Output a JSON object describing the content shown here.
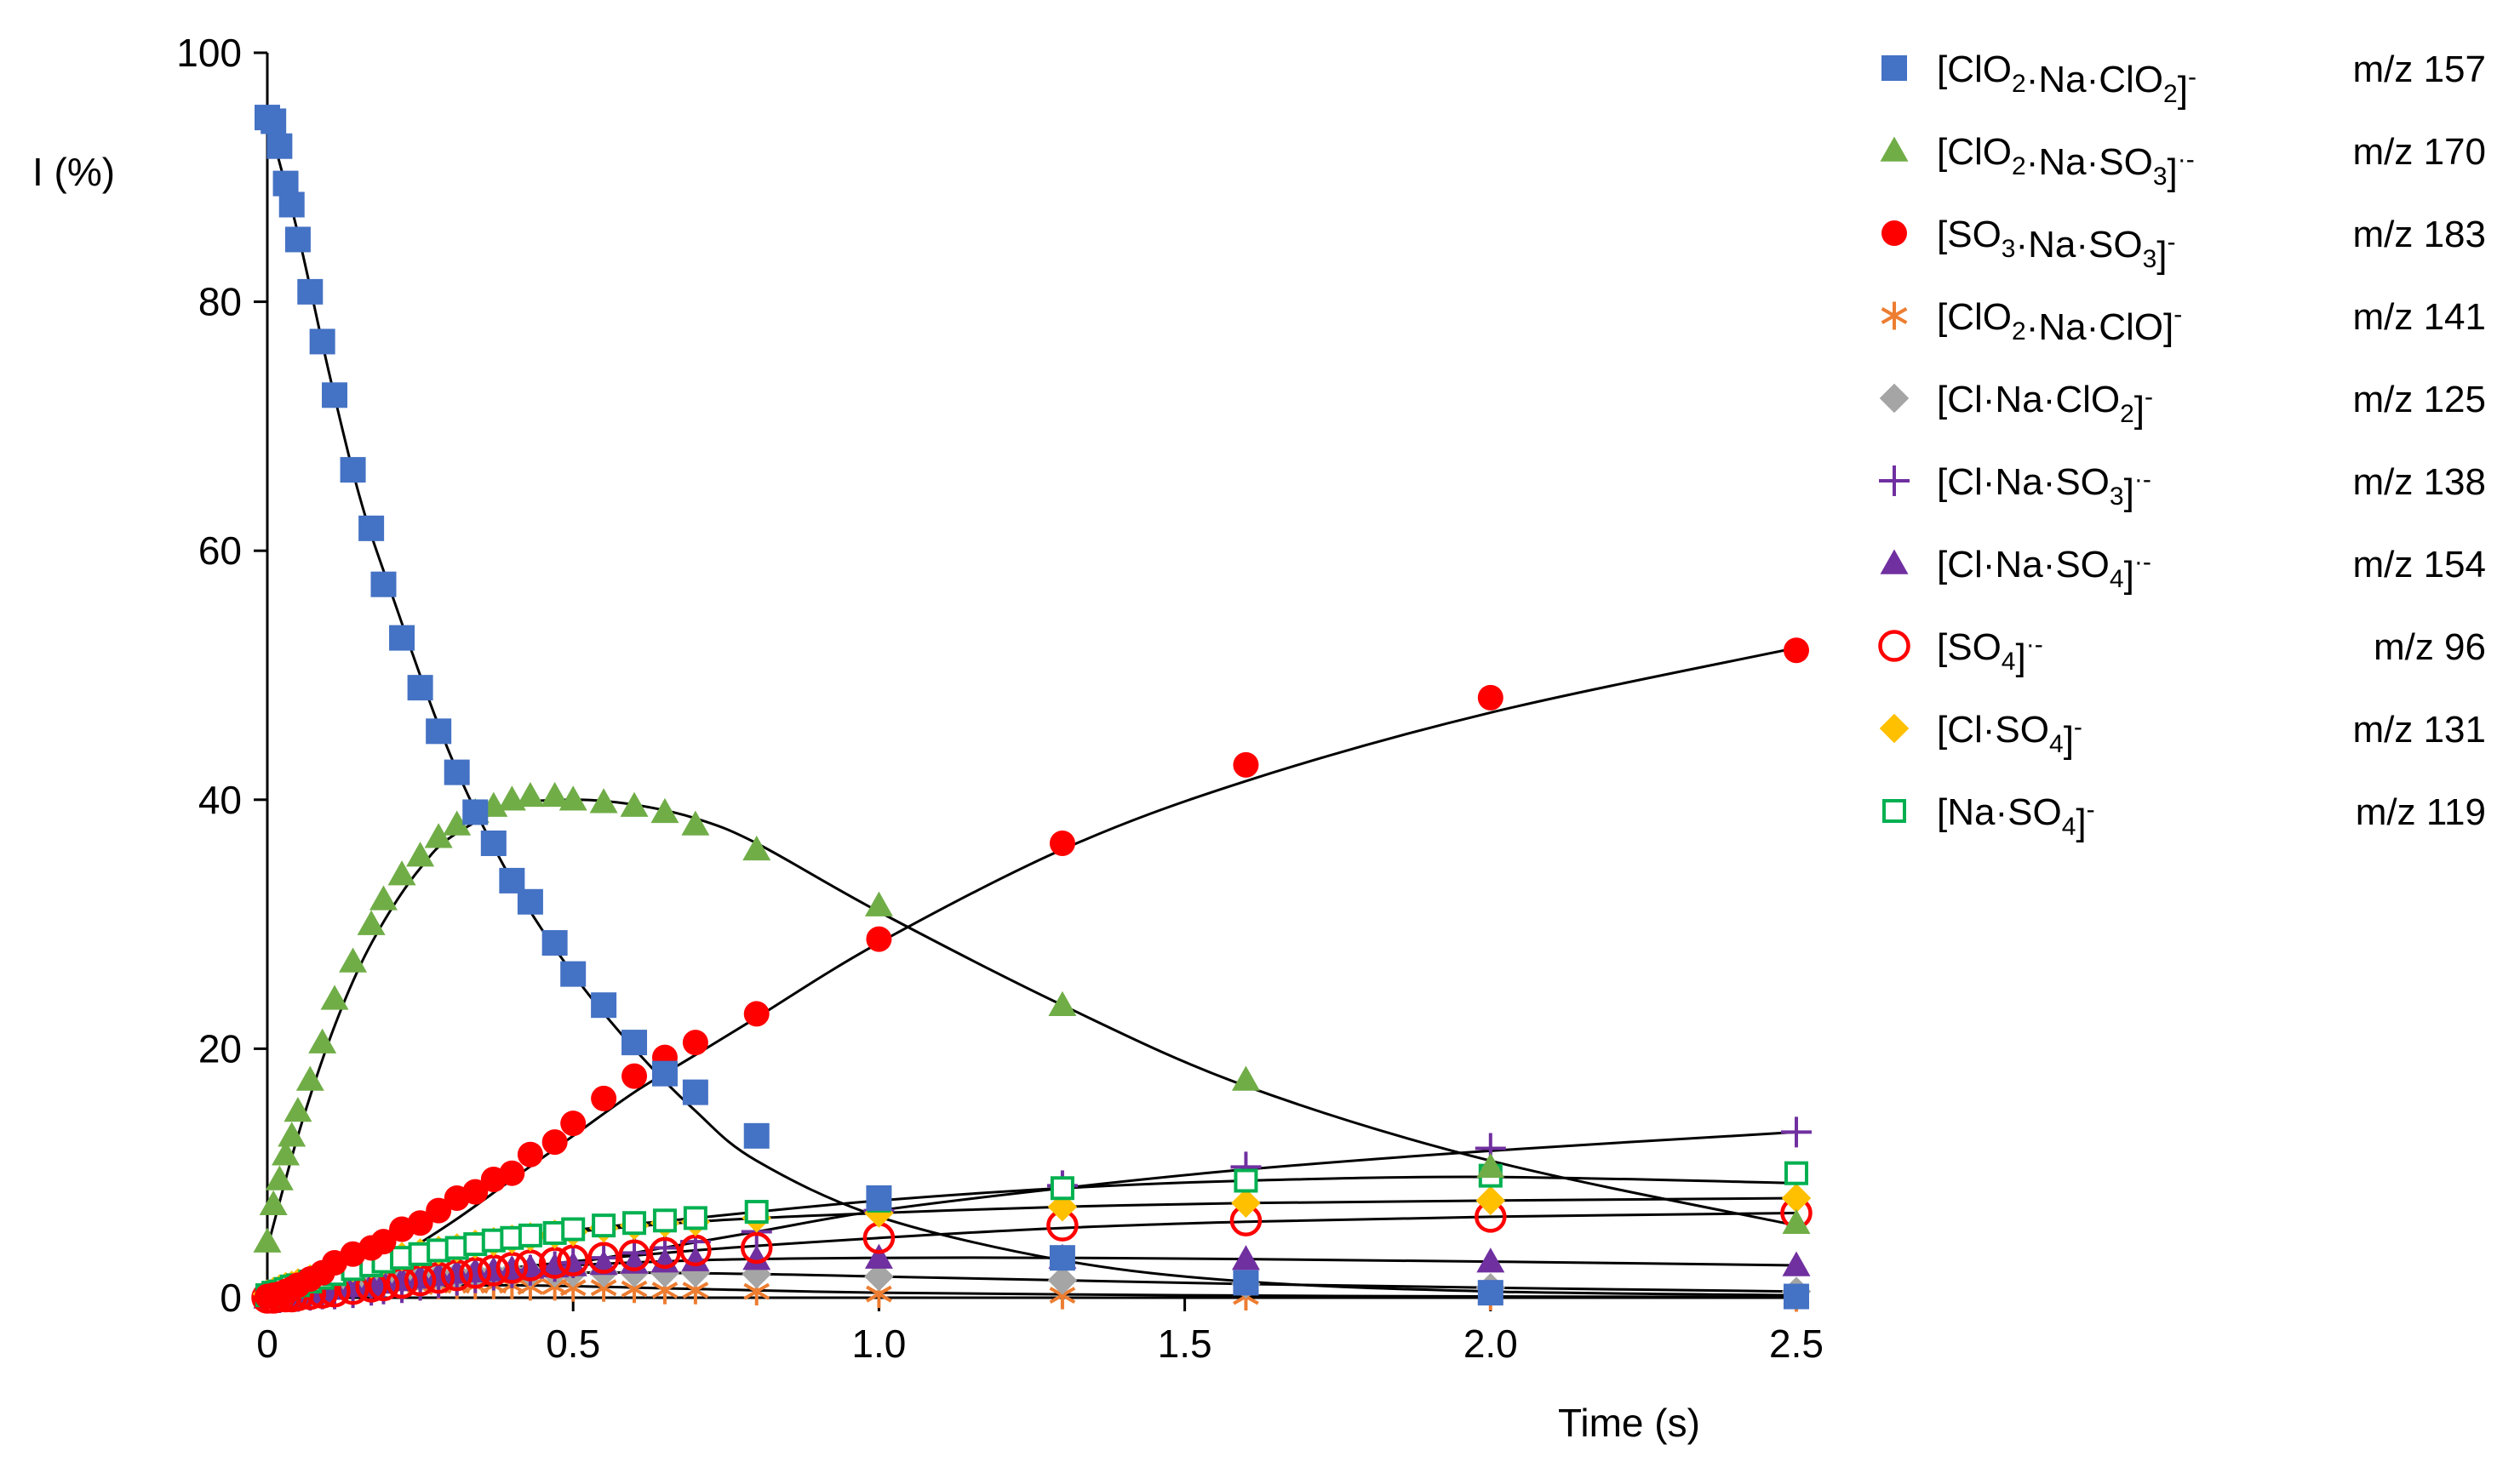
{
  "chart_data": {
    "type": "scatter",
    "title": "",
    "xlabel": "Time (s)",
    "ylabel": "I (%)",
    "xlim": [
      0,
      2.5
    ],
    "ylim": [
      0,
      100
    ],
    "xticks": [
      0,
      0.5,
      1.0,
      1.5,
      2.0,
      2.5
    ],
    "xtick_labels": [
      "0",
      "0.5",
      "1.0",
      "1.5",
      "2.0",
      "2.5"
    ],
    "yticks": [
      0,
      20,
      40,
      60,
      80,
      100
    ],
    "ytick_labels": [
      "0",
      "20",
      "40",
      "60",
      "80",
      "100"
    ],
    "grid": false,
    "legend_position": "right",
    "x": [
      0,
      0.01,
      0.02,
      0.03,
      0.04,
      0.05,
      0.07,
      0.09,
      0.11,
      0.14,
      0.17,
      0.19,
      0.22,
      0.25,
      0.28,
      0.31,
      0.34,
      0.37,
      0.4,
      0.43,
      0.47,
      0.5,
      0.55,
      0.6,
      0.65,
      0.7,
      0.8,
      1.0,
      1.3,
      1.6,
      2.0,
      2.5
    ],
    "series": [
      {
        "key": "s157",
        "name": "[ClO2·Na·ClO2]-",
        "mz": "m/z 157",
        "marker": "square",
        "color": "#4472C4",
        "legend_parts": [
          [
            "[ClO",
            ""
          ],
          [
            "2",
            "sub"
          ],
          [
            "·Na·ClO",
            ""
          ],
          [
            "2",
            "sub"
          ],
          [
            "]",
            ""
          ],
          [
            "-",
            "sup"
          ]
        ],
        "values": [
          94.8,
          94.5,
          92.5,
          89.5,
          87.8,
          85.0,
          80.8,
          76.8,
          72.5,
          66.5,
          61.8,
          57.3,
          53.0,
          49.0,
          45.5,
          42.2,
          39.0,
          36.5,
          33.5,
          31.8,
          28.5,
          26.0,
          23.5,
          20.5,
          18.0,
          16.5,
          13.0,
          8.0,
          3.2,
          1.2,
          0.4,
          0.1
        ],
        "fit": [
          [
            0,
            94.8
          ],
          [
            0.05,
            85.5
          ],
          [
            0.1,
            74.5
          ],
          [
            0.15,
            64.5
          ],
          [
            0.2,
            57.0
          ],
          [
            0.3,
            43.5
          ],
          [
            0.4,
            33.5
          ],
          [
            0.5,
            26.0
          ],
          [
            0.6,
            20.0
          ],
          [
            0.7,
            15.0
          ],
          [
            0.8,
            11.0
          ],
          [
            1.0,
            6.5
          ],
          [
            1.3,
            3.0
          ],
          [
            1.6,
            1.3
          ],
          [
            2.0,
            0.5
          ],
          [
            2.5,
            0.2
          ]
        ]
      },
      {
        "key": "s170",
        "name": "[ClO2·Na·SO3]·-",
        "mz": "m/z 170",
        "marker": "triangle",
        "color": "#70AD47",
        "legend_parts": [
          [
            "[ClO",
            ""
          ],
          [
            "2",
            "sub"
          ],
          [
            "·Na·SO",
            ""
          ],
          [
            "3",
            "sub"
          ],
          [
            "]",
            ""
          ],
          [
            "·-",
            "sup"
          ]
        ],
        "values": [
          4.5,
          7.5,
          9.5,
          11.5,
          13.0,
          15.0,
          17.5,
          20.5,
          24.0,
          27.0,
          30.0,
          32.0,
          34.0,
          35.5,
          37.0,
          38.0,
          39.0,
          39.5,
          40.0,
          40.3,
          40.3,
          40.0,
          39.8,
          39.5,
          39.0,
          38.0,
          36.0,
          31.5,
          23.5,
          17.5,
          10.5,
          6.0
        ],
        "fit": [
          [
            0,
            4.0
          ],
          [
            0.05,
            13.0
          ],
          [
            0.1,
            20.5
          ],
          [
            0.15,
            26.5
          ],
          [
            0.2,
            31.0
          ],
          [
            0.25,
            34.5
          ],
          [
            0.3,
            37.0
          ],
          [
            0.4,
            39.5
          ],
          [
            0.5,
            40.0
          ],
          [
            0.6,
            39.6
          ],
          [
            0.7,
            38.5
          ],
          [
            0.8,
            36.5
          ],
          [
            1.0,
            31.0
          ],
          [
            1.3,
            23.5
          ],
          [
            1.6,
            17.0
          ],
          [
            2.0,
            11.0
          ],
          [
            2.5,
            5.8
          ]
        ]
      },
      {
        "key": "s183",
        "name": "[SO3·Na·SO3]-",
        "mz": "m/z 183",
        "marker": "circle",
        "color": "#FF0000",
        "legend_parts": [
          [
            "[SO",
            ""
          ],
          [
            "3",
            "sub"
          ],
          [
            "·Na·SO",
            ""
          ],
          [
            "3",
            "sub"
          ],
          [
            "]",
            ""
          ],
          [
            "-",
            "sup"
          ]
        ],
        "values": [
          0.1,
          0.2,
          0.3,
          0.5,
          0.7,
          1.0,
          1.5,
          2.0,
          2.8,
          3.5,
          4.0,
          4.5,
          5.5,
          6.0,
          7.0,
          8.0,
          8.5,
          9.5,
          10.0,
          11.5,
          12.5,
          14.0,
          16.0,
          17.8,
          19.3,
          20.5,
          22.8,
          28.8,
          36.5,
          42.8,
          48.2,
          52.0
        ],
        "fit": [
          [
            0,
            0
          ],
          [
            0.1,
            1.0
          ],
          [
            0.2,
            3.0
          ],
          [
            0.3,
            6.0
          ],
          [
            0.4,
            9.5
          ],
          [
            0.5,
            13.0
          ],
          [
            0.6,
            16.5
          ],
          [
            0.7,
            19.5
          ],
          [
            0.8,
            22.5
          ],
          [
            1.0,
            28.5
          ],
          [
            1.3,
            36.0
          ],
          [
            1.6,
            41.5
          ],
          [
            2.0,
            47.0
          ],
          [
            2.5,
            52.2
          ]
        ]
      },
      {
        "key": "s141",
        "name": "[ClO2·Na·ClO]-",
        "mz": "m/z 141",
        "marker": "asterisk",
        "color": "#ED7D31",
        "legend_parts": [
          [
            "[ClO",
            ""
          ],
          [
            "2",
            "sub"
          ],
          [
            "·Na·ClO]",
            ""
          ],
          [
            "-",
            "sup"
          ]
        ],
        "values": [
          0.1,
          0.1,
          0.2,
          0.2,
          0.3,
          0.3,
          0.4,
          0.5,
          0.6,
          0.7,
          0.8,
          0.8,
          0.9,
          0.9,
          1.0,
          1.0,
          1.0,
          1.0,
          1.0,
          0.9,
          0.9,
          0.8,
          0.8,
          0.7,
          0.6,
          0.6,
          0.5,
          0.3,
          0.2,
          0.1,
          0.1,
          0.0
        ],
        "fit": [
          [
            0,
            0
          ],
          [
            0.2,
            0.8
          ],
          [
            0.4,
            1.0
          ],
          [
            0.7,
            0.7
          ],
          [
            1.0,
            0.4
          ],
          [
            1.5,
            0.2
          ],
          [
            2.0,
            0.1
          ],
          [
            2.5,
            0.05
          ]
        ]
      },
      {
        "key": "s125",
        "name": "[Cl·Na·ClO2]-",
        "mz": "m/z 125",
        "marker": "diamond",
        "color": "#A5A5A5",
        "legend_parts": [
          [
            "[Cl·Na·ClO",
            ""
          ],
          [
            "2",
            "sub"
          ],
          [
            "]",
            ""
          ],
          [
            "-",
            "sup"
          ]
        ],
        "values": [
          0.2,
          0.2,
          0.3,
          0.4,
          0.5,
          0.6,
          0.7,
          0.8,
          1.0,
          1.1,
          1.3,
          1.4,
          1.5,
          1.6,
          1.7,
          1.8,
          1.9,
          1.9,
          2.0,
          2.0,
          2.0,
          2.0,
          2.0,
          2.0,
          2.0,
          2.0,
          1.9,
          1.7,
          1.4,
          1.1,
          0.8,
          0.5
        ],
        "fit": [
          [
            0,
            0.2
          ],
          [
            0.2,
            1.4
          ],
          [
            0.5,
            2.0
          ],
          [
            0.8,
            1.9
          ],
          [
            1.0,
            1.7
          ],
          [
            1.3,
            1.4
          ],
          [
            1.6,
            1.1
          ],
          [
            2.0,
            0.8
          ],
          [
            2.5,
            0.5
          ]
        ]
      },
      {
        "key": "s138",
        "name": "[Cl·Na·SO3]·-",
        "mz": "m/z 138",
        "marker": "plus",
        "color": "#7030A0",
        "legend_parts": [
          [
            "[Cl·Na·SO",
            ""
          ],
          [
            "3",
            "sub"
          ],
          [
            "]",
            ""
          ],
          [
            "·-",
            "sup"
          ]
        ],
        "values": [
          0.0,
          0.0,
          0.0,
          0.1,
          0.1,
          0.1,
          0.2,
          0.3,
          0.3,
          0.4,
          0.6,
          0.7,
          0.8,
          1.0,
          1.2,
          1.4,
          1.6,
          1.8,
          2.0,
          2.2,
          2.5,
          2.8,
          3.2,
          3.6,
          4.0,
          4.5,
          5.3,
          7.0,
          9.0,
          10.5,
          12.0,
          13.3
        ],
        "fit": [
          [
            0,
            0
          ],
          [
            0.2,
            0.6
          ],
          [
            0.4,
            2.0
          ],
          [
            0.6,
            3.6
          ],
          [
            0.8,
            5.3
          ],
          [
            1.0,
            7.0
          ],
          [
            1.3,
            8.8
          ],
          [
            1.6,
            10.3
          ],
          [
            2.0,
            11.8
          ],
          [
            2.5,
            13.3
          ]
        ]
      },
      {
        "key": "s154",
        "name": "[Cl·Na·SO4]·-",
        "mz": "m/z 154",
        "marker": "triangle",
        "color": "#7030A0",
        "legend_parts": [
          [
            "[Cl·Na·SO",
            ""
          ],
          [
            "4",
            "sub"
          ],
          [
            "]",
            ""
          ],
          [
            "·-",
            "sup"
          ]
        ],
        "values": [
          0.0,
          0.1,
          0.1,
          0.2,
          0.2,
          0.3,
          0.4,
          0.5,
          0.7,
          0.9,
          1.0,
          1.2,
          1.4,
          1.6,
          1.8,
          2.0,
          2.1,
          2.2,
          2.3,
          2.4,
          2.5,
          2.6,
          2.7,
          2.8,
          2.9,
          3.0,
          3.1,
          3.2,
          3.2,
          3.1,
          2.9,
          2.6
        ],
        "fit": [
          [
            0,
            0
          ],
          [
            0.2,
            1.2
          ],
          [
            0.4,
            2.3
          ],
          [
            0.7,
            3.0
          ],
          [
            1.0,
            3.2
          ],
          [
            1.3,
            3.2
          ],
          [
            1.6,
            3.1
          ],
          [
            2.0,
            2.9
          ],
          [
            2.5,
            2.6
          ]
        ]
      },
      {
        "key": "s96",
        "name": "[SO4]·-",
        "mz": "m/z 96",
        "marker": "open-circle",
        "color": "#FF0000",
        "legend_parts": [
          [
            "[SO",
            ""
          ],
          [
            "4",
            "sub"
          ],
          [
            "]",
            ""
          ],
          [
            "·-",
            "sup"
          ]
        ],
        "values": [
          0.0,
          0.0,
          0.1,
          0.1,
          0.1,
          0.2,
          0.3,
          0.4,
          0.5,
          0.7,
          0.9,
          1.0,
          1.2,
          1.4,
          1.6,
          1.8,
          2.0,
          2.2,
          2.4,
          2.6,
          2.8,
          3.0,
          3.2,
          3.4,
          3.6,
          3.8,
          4.0,
          4.8,
          5.8,
          6.2,
          6.5,
          6.8
        ],
        "fit": [
          [
            0,
            0
          ],
          [
            0.2,
            1.0
          ],
          [
            0.4,
            2.4
          ],
          [
            0.7,
            3.8
          ],
          [
            1.0,
            4.8
          ],
          [
            1.3,
            5.6
          ],
          [
            1.6,
            6.1
          ],
          [
            2.0,
            6.5
          ],
          [
            2.5,
            6.8
          ]
        ]
      },
      {
        "key": "s131",
        "name": "[Cl·SO4]-",
        "mz": "m/z 131",
        "marker": "diamond",
        "color": "#FFC000",
        "legend_parts": [
          [
            "[Cl·SO",
            ""
          ],
          [
            "4",
            "sub"
          ],
          [
            "]",
            ""
          ],
          [
            "-",
            "sup"
          ]
        ],
        "values": [
          0.3,
          0.5,
          0.7,
          0.9,
          1.0,
          1.2,
          1.5,
          1.8,
          2.1,
          2.4,
          2.7,
          3.0,
          3.3,
          3.6,
          3.8,
          4.0,
          4.3,
          4.5,
          4.7,
          4.9,
          5.1,
          5.3,
          5.6,
          5.8,
          6.0,
          6.1,
          6.4,
          6.8,
          7.3,
          7.6,
          7.8,
          8.0
        ],
        "fit": [
          [
            0,
            0.3
          ],
          [
            0.2,
            2.7
          ],
          [
            0.4,
            4.7
          ],
          [
            0.7,
            6.1
          ],
          [
            1.0,
            6.8
          ],
          [
            1.3,
            7.3
          ],
          [
            1.6,
            7.6
          ],
          [
            2.0,
            7.8
          ],
          [
            2.5,
            8.0
          ]
        ]
      },
      {
        "key": "s119",
        "name": "[Na·SO4]-",
        "mz": "m/z 119",
        "marker": "open-square",
        "color": "#00B050",
        "legend_parts": [
          [
            "[Na·SO",
            ""
          ],
          [
            "4",
            "sub"
          ],
          [
            "]",
            ""
          ],
          [
            "-",
            "sup"
          ]
        ],
        "values": [
          0.2,
          0.4,
          0.5,
          0.7,
          0.9,
          1.0,
          1.3,
          1.6,
          1.9,
          2.3,
          2.6,
          2.9,
          3.2,
          3.5,
          3.8,
          4.0,
          4.3,
          4.6,
          4.8,
          5.0,
          5.2,
          5.5,
          5.8,
          6.0,
          6.2,
          6.4,
          6.9,
          7.8,
          8.8,
          9.4,
          9.8,
          10.0
        ],
        "fit": [
          [
            0,
            0.2
          ],
          [
            0.2,
            2.6
          ],
          [
            0.4,
            4.8
          ],
          [
            0.7,
            6.4
          ],
          [
            1.0,
            7.8
          ],
          [
            1.3,
            8.8
          ],
          [
            1.6,
            9.4
          ],
          [
            2.0,
            9.7
          ],
          [
            2.5,
            9.2
          ]
        ]
      }
    ]
  }
}
